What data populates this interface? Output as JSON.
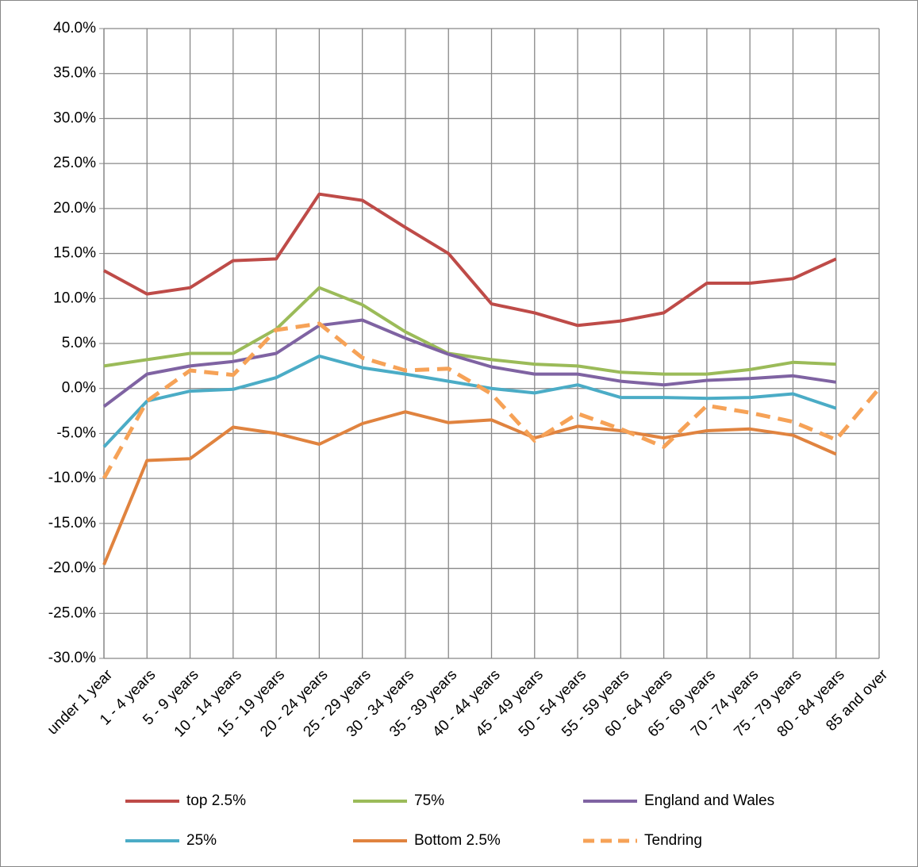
{
  "chart_data": {
    "type": "line",
    "categories": [
      "under 1 year",
      "1 - 4 years",
      "5 - 9 years",
      "10 - 14 years",
      "15 - 19 years",
      "20 - 24 years",
      "25 - 29 years",
      "30 - 34 years",
      "35 - 39 years",
      "40 - 44 years",
      "45 - 49 years",
      "50 - 54 years",
      "55 - 59 years",
      "60 - 64 years",
      "65 - 69 years",
      "70 - 74 years",
      "75 - 79 years",
      "80 - 84 years",
      "85 and over"
    ],
    "series": [
      {
        "name": "top 2.5%",
        "color": "#be4b48",
        "values": [
          13.1,
          10.5,
          11.2,
          14.2,
          14.4,
          21.6,
          20.9,
          17.9,
          15.0,
          9.4,
          8.4,
          7.0,
          7.5,
          8.4,
          11.7,
          11.7,
          12.2,
          14.4,
          null
        ]
      },
      {
        "name": "75%",
        "color": "#9bbb59",
        "values": [
          2.5,
          3.2,
          3.9,
          3.9,
          6.6,
          11.2,
          9.3,
          6.3,
          3.9,
          3.2,
          2.7,
          2.5,
          1.8,
          1.6,
          1.6,
          2.1,
          2.9,
          2.7,
          null
        ]
      },
      {
        "name": "England and Wales",
        "color": "#7f63a2",
        "values": [
          -2.0,
          1.6,
          2.5,
          3.0,
          3.9,
          7.0,
          7.6,
          5.6,
          3.8,
          2.4,
          1.6,
          1.6,
          0.8,
          0.4,
          0.9,
          1.1,
          1.4,
          0.7,
          null
        ]
      },
      {
        "name": "25%",
        "color": "#4bacc6",
        "values": [
          -6.5,
          -1.4,
          -0.3,
          -0.1,
          1.2,
          3.6,
          2.3,
          1.6,
          0.8,
          0.0,
          -0.5,
          0.4,
          -1.0,
          -1.0,
          -1.1,
          -1.0,
          -0.6,
          -2.2,
          null
        ]
      },
      {
        "name": "Bottom 2.5%",
        "color": "#e0833f",
        "values": [
          -19.6,
          -8.0,
          -7.8,
          -4.3,
          -5.0,
          -6.2,
          -3.9,
          -2.6,
          -3.8,
          -3.5,
          -5.5,
          -4.2,
          -4.7,
          -5.5,
          -4.7,
          -4.5,
          -5.2,
          -7.3,
          null
        ]
      },
      {
        "name": "Tendring",
        "color": "#f6a257",
        "dashed": true,
        "values": [
          -10.0,
          -1.4,
          2.0,
          1.5,
          6.5,
          7.2,
          3.4,
          2.0,
          2.2,
          -0.6,
          -5.8,
          -2.8,
          -4.5,
          -6.5,
          -1.9,
          -2.7,
          -3.7,
          -5.7,
          0.0
        ]
      }
    ],
    "ylim": [
      -30,
      40
    ],
    "yticks": [
      {
        "value": -30,
        "label": "-30.0%"
      },
      {
        "value": -25,
        "label": "-25.0%"
      },
      {
        "value": -20,
        "label": "-20.0%"
      },
      {
        "value": -15,
        "label": "-15.0%"
      },
      {
        "value": -10,
        "label": "-10.0%"
      },
      {
        "value": -5,
        "label": "-5.0%"
      },
      {
        "value": 0,
        "label": "0.0%"
      },
      {
        "value": 5,
        "label": "5.0%"
      },
      {
        "value": 10,
        "label": "10.0%"
      },
      {
        "value": 15,
        "label": "15.0%"
      },
      {
        "value": 20,
        "label": "20.0%"
      },
      {
        "value": 25,
        "label": "25.0%"
      },
      {
        "value": 30,
        "label": "30.0%"
      },
      {
        "value": 35,
        "label": "35.0%"
      },
      {
        "value": 40,
        "label": "40.0%"
      }
    ],
    "grid": true
  }
}
